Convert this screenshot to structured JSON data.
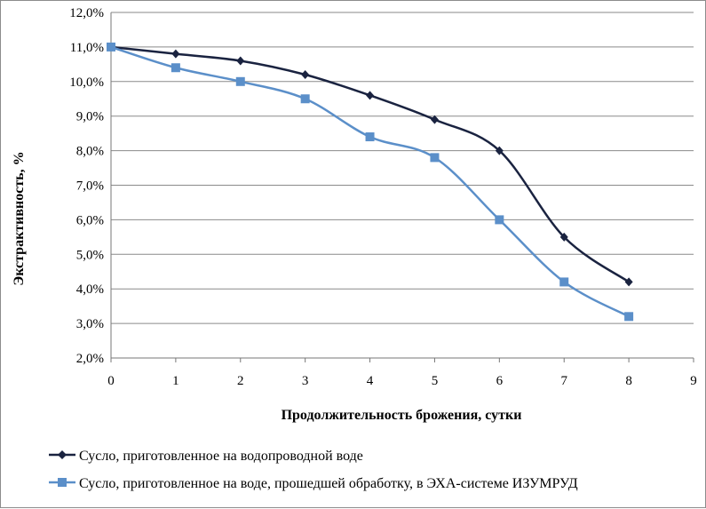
{
  "chart_data": {
    "type": "line",
    "xlabel": "Продолжительность брожения, сутки",
    "ylabel": "Экстрактивность, %",
    "xlim": [
      0,
      9
    ],
    "ylim": [
      0.02,
      0.12
    ],
    "x_ticks": [
      "0",
      "1",
      "2",
      "3",
      "4",
      "5",
      "6",
      "7",
      "8",
      "9"
    ],
    "y_ticks": [
      "2,0%",
      "3,0%",
      "4,0%",
      "5,0%",
      "6,0%",
      "7,0%",
      "8,0%",
      "9,0%",
      "10,0%",
      "11,0%",
      "12,0%"
    ],
    "grid": "horizontal",
    "legend_position": "bottom",
    "smooth": true,
    "x": [
      0,
      1,
      2,
      3,
      4,
      5,
      6,
      7,
      8
    ],
    "series": [
      {
        "name": "Сусло, приготовленное на водопроводной воде",
        "color": "#1a2340",
        "marker": "diamond",
        "values": [
          0.11,
          0.108,
          0.106,
          0.102,
          0.096,
          0.089,
          0.08,
          0.055,
          0.042
        ]
      },
      {
        "name": "Сусло, приготовленное на воде, прошедшей обработку, в ЭХА-системе ИЗУМРУД",
        "color": "#5b8fc9",
        "marker": "square",
        "values": [
          0.11,
          0.104,
          0.1,
          0.095,
          0.084,
          0.078,
          0.06,
          0.042,
          0.032
        ]
      }
    ]
  }
}
